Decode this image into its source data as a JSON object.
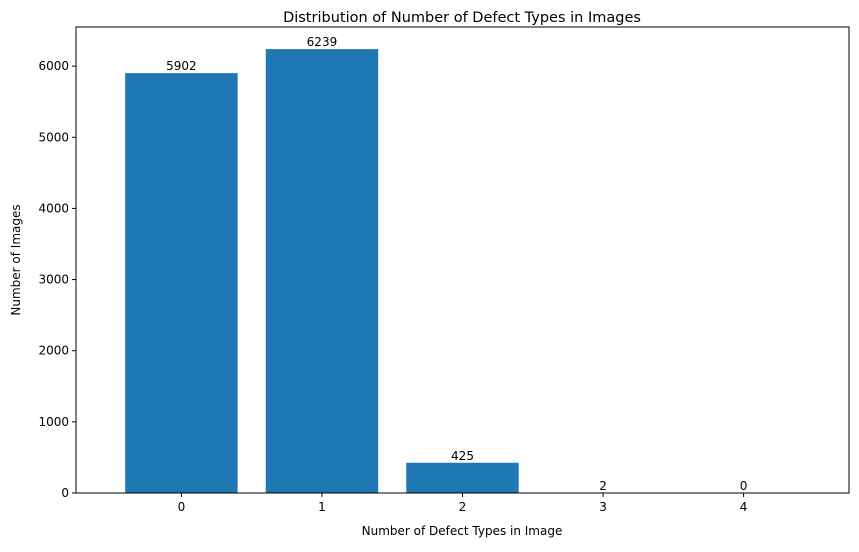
{
  "chart_data": {
    "type": "bar",
    "title": "Distribution of Number of Defect Types in Images",
    "xlabel": "Number of Defect Types in Image",
    "ylabel": "Number of Images",
    "categories": [
      "0",
      "1",
      "2",
      "3",
      "4"
    ],
    "values": [
      5902,
      6239,
      425,
      2,
      0
    ],
    "data_labels": [
      "5902",
      "6239",
      "425",
      "2",
      "0"
    ],
    "ylim": [
      0,
      6550
    ],
    "yticks": [
      0,
      1000,
      2000,
      3000,
      4000,
      5000,
      6000
    ],
    "ytick_labels": [
      "0",
      "1000",
      "2000",
      "3000",
      "4000",
      "5000",
      "6000"
    ],
    "grid": false,
    "bar_color": "#1f77b4"
  }
}
